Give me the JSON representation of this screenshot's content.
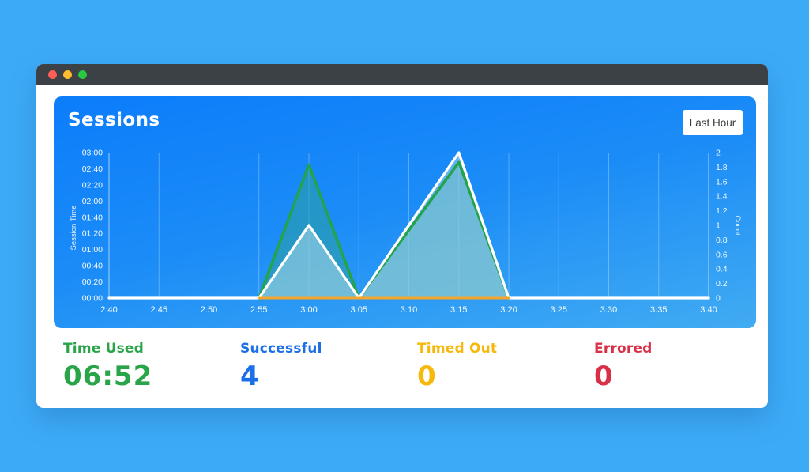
{
  "window": {
    "traffic_lights": [
      {
        "name": "close",
        "color": "#ff5f57"
      },
      {
        "name": "minimize",
        "color": "#febc2e"
      },
      {
        "name": "zoom",
        "color": "#28c841"
      }
    ],
    "titlebar_color": "#3c4146"
  },
  "panel": {
    "title": "Sessions",
    "range_button": "Last Hour",
    "background_top": "#0c7dfa",
    "background_bottom": "#41abf2"
  },
  "chart_data": {
    "type": "area",
    "title": "Sessions",
    "x": [
      "2:40",
      "2:45",
      "2:50",
      "2:55",
      "3:00",
      "3:05",
      "3:10",
      "3:15",
      "3:20",
      "3:25",
      "3:30",
      "3:35",
      "3:40"
    ],
    "left_axis": {
      "label": "Session Time",
      "ticks": [
        "00:00",
        "00:20",
        "00:40",
        "01:00",
        "01:20",
        "01:40",
        "02:00",
        "02:20",
        "02:40",
        "03:00"
      ],
      "range": [
        0,
        180
      ],
      "unit": "minutes"
    },
    "right_axis": {
      "label": "Count",
      "ticks": [
        "0",
        "0.2",
        "0.4",
        "0.6",
        "0.8",
        "1",
        "1.2",
        "1.4",
        "1.6",
        "1.8",
        "2"
      ],
      "range": [
        0,
        2
      ]
    },
    "grid": "vertical-only",
    "legend": "none",
    "series": [
      {
        "name": "Session Time",
        "axis": "left",
        "color": "#23a34a",
        "fill": "rgba(45,160,160,0.55)",
        "width": 3.5,
        "values": [
          null,
          null,
          null,
          0,
          165,
          0,
          84,
          168,
          0,
          null,
          null,
          null,
          null
        ]
      },
      {
        "name": "Count",
        "axis": "right",
        "color": "#ffffff",
        "fill": "rgba(255,255,255,0.33)",
        "width": 3.3,
        "values": [
          0,
          0,
          0,
          0,
          1,
          0,
          1,
          2,
          0,
          0,
          0,
          0,
          0
        ]
      },
      {
        "name": "Timed Out",
        "axis": "right",
        "color": "#f5a62a",
        "fill": null,
        "width": 3,
        "values": [
          null,
          null,
          null,
          0,
          0,
          0,
          0,
          0,
          0,
          null,
          null,
          null,
          null
        ]
      }
    ],
    "tick_color": "rgba(255,255,255,0.95)",
    "gridline_color": "rgba(255,255,255,0.28)",
    "axisline_color": "rgba(255,255,255,0.6)"
  },
  "stats": [
    {
      "label": "Time Used",
      "value": "06:52",
      "color": "#2aa449"
    },
    {
      "label": "Successful",
      "value": "4",
      "color": "#1b6fe8"
    },
    {
      "label": "Timed Out",
      "value": "0",
      "color": "#f6b80a"
    },
    {
      "label": "Errored",
      "value": "0",
      "color": "#d93048"
    }
  ]
}
